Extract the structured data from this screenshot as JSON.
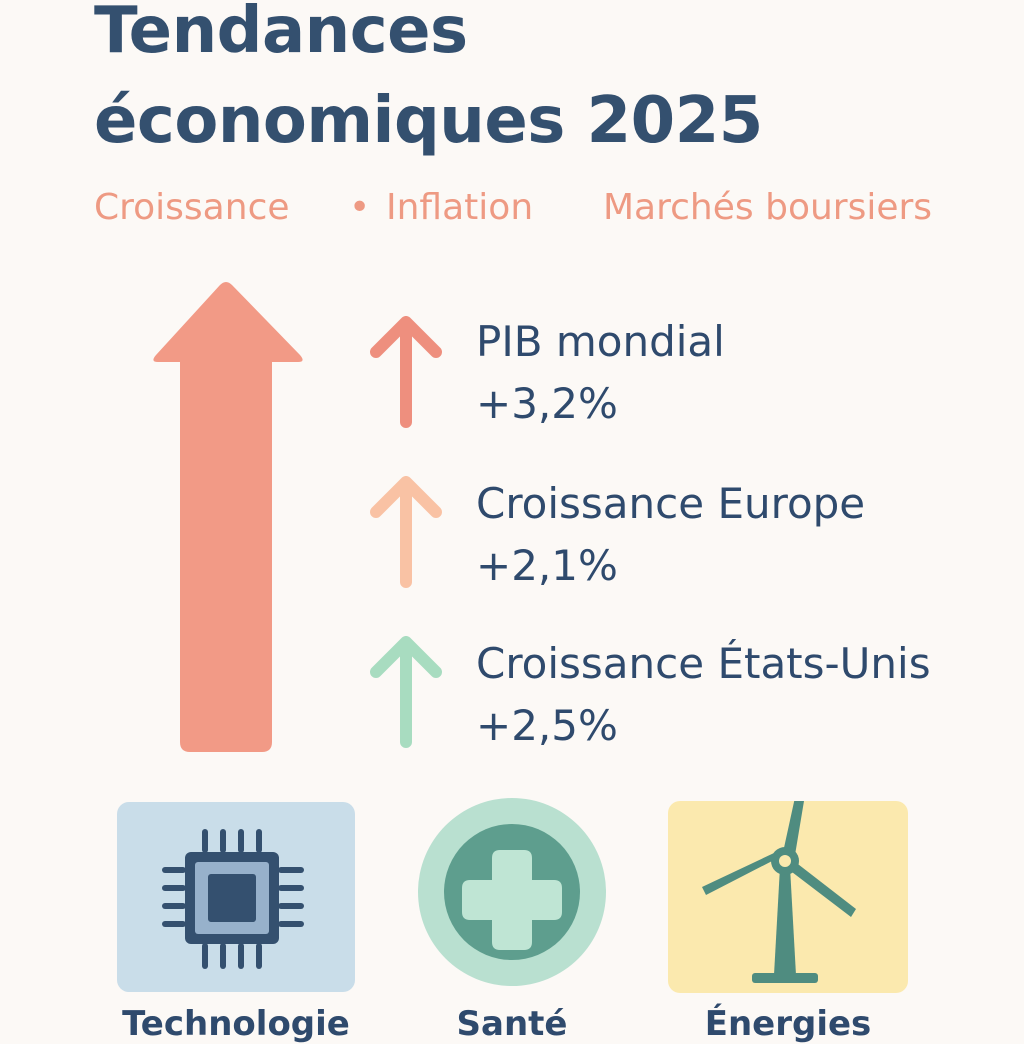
{
  "title": {
    "line1": "Tendances",
    "line2": "économiques 2025"
  },
  "subtitle": {
    "item1": "Croissance",
    "separator": "•",
    "item2": "Inflation",
    "item3": "Marchés boursiers"
  },
  "stats": [
    {
      "label": "PIB mondial",
      "value": "+3,2%",
      "arrow_color": "#ee8f7e"
    },
    {
      "label": "Croissance Europe",
      "value": "+2,1%",
      "arrow_color": "#f9c2a4"
    },
    {
      "label": "Croissance États-Unis",
      "value": "+2,5%",
      "arrow_color": "#a8dcc0"
    }
  ],
  "main_arrow_color": "#f29a86",
  "sectors": [
    {
      "label": "Technologie",
      "icon": "chip-icon",
      "bg": "#c9dde9"
    },
    {
      "label": "Santé",
      "icon": "medical-cross-icon",
      "bg": "#b9e0d0"
    },
    {
      "label": "Énergies",
      "icon": "wind-turbine-icon",
      "bg": "#fbe9ae"
    }
  ]
}
